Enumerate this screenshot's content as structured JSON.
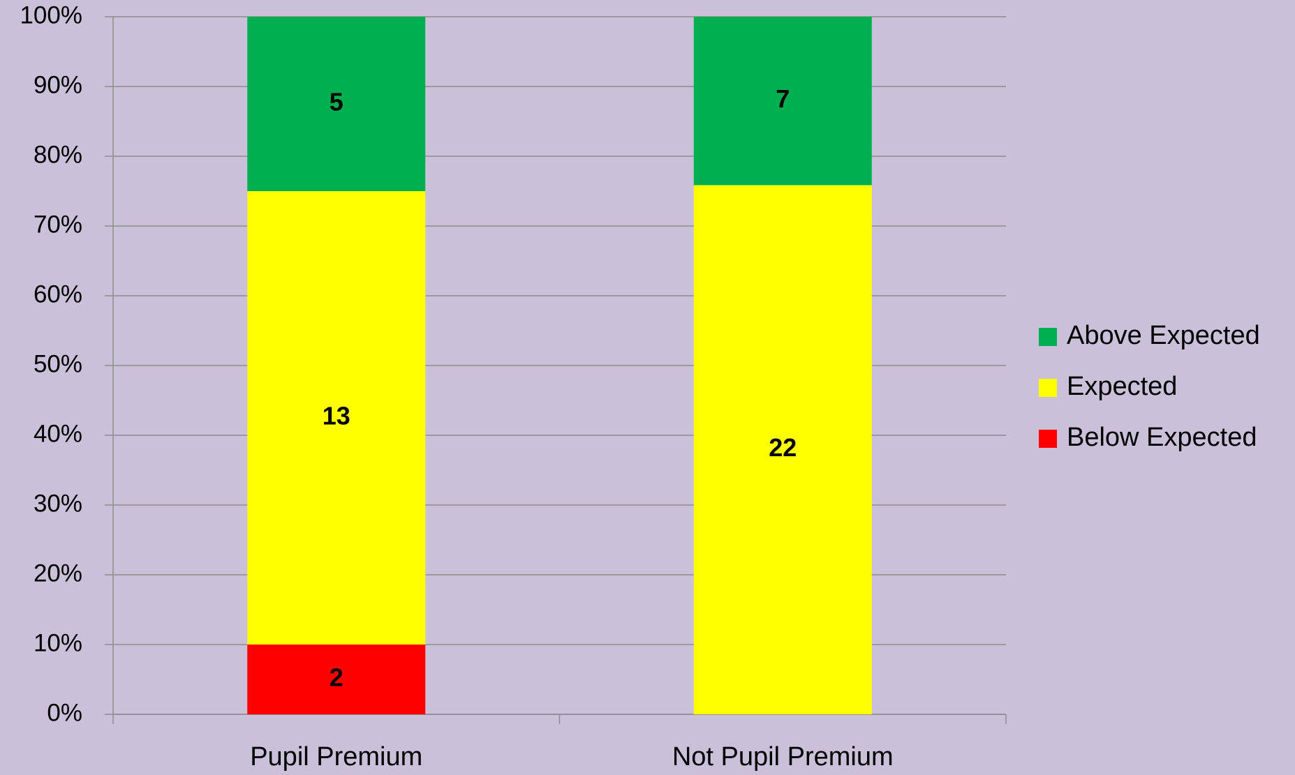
{
  "chart_data": {
    "type": "bar",
    "stacked": "percent",
    "categories": [
      "Pupil Premium",
      "Not Pupil Premium"
    ],
    "series": [
      {
        "name": "Below Expected",
        "color": "#ff0000",
        "values": [
          2,
          null
        ]
      },
      {
        "name": "Expected",
        "color": "#ffff00",
        "values": [
          13,
          22
        ]
      },
      {
        "name": "Above Expected",
        "color": "#00b050",
        "values": [
          5,
          7
        ]
      }
    ],
    "ylim": [
      0,
      100
    ],
    "yticks": [
      {
        "value": 0,
        "label": "0%"
      },
      {
        "value": 10,
        "label": "10%"
      },
      {
        "value": 20,
        "label": "20%"
      },
      {
        "value": 30,
        "label": "30%"
      },
      {
        "value": 40,
        "label": "40%"
      },
      {
        "value": 50,
        "label": "50%"
      },
      {
        "value": 60,
        "label": "60%"
      },
      {
        "value": 70,
        "label": "70%"
      },
      {
        "value": 80,
        "label": "80%"
      },
      {
        "value": 90,
        "label": "90%"
      },
      {
        "value": 100,
        "label": "100%"
      }
    ],
    "grid": true,
    "legend": "right"
  }
}
